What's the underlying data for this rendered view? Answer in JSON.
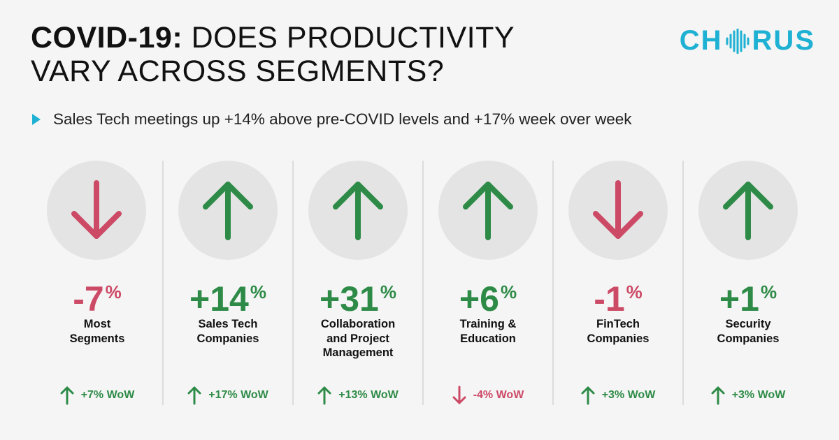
{
  "header": {
    "title_bold": "COVID-19:",
    "title_rest_line1": " DOES PRODUCTIVITY",
    "title_line2": "VARY ACROSS SEGMENTS?",
    "logo_left": "CH",
    "logo_right": "RUS"
  },
  "subtitle": "Sales Tech meetings up +14% above pre-COVID levels and +17% week over week",
  "colors": {
    "up": "#2e8b47",
    "down": "#cc4a66",
    "accent": "#1fb1d3"
  },
  "chart_data": {
    "type": "table",
    "title": "COVID-19: DOES PRODUCTIVITY VARY ACROSS SEGMENTS?",
    "unit": "%",
    "segments": [
      {
        "name": "Most Segments",
        "label_lines": [
          "Most",
          "Segments"
        ],
        "change": -7,
        "display": "-7",
        "direction": "down",
        "wow": 7,
        "wow_display": "+7% WoW",
        "wow_direction": "up"
      },
      {
        "name": "Sales Tech Companies",
        "label_lines": [
          "Sales Tech",
          "Companies"
        ],
        "change": 14,
        "display": "+14",
        "direction": "up",
        "wow": 17,
        "wow_display": "+17% WoW",
        "wow_direction": "up"
      },
      {
        "name": "Collaboration and Project Management",
        "label_lines": [
          "Collaboration",
          "and Project",
          "Management"
        ],
        "change": 31,
        "display": "+31",
        "direction": "up",
        "wow": 13,
        "wow_display": "+13% WoW",
        "wow_direction": "up"
      },
      {
        "name": "Training & Education",
        "label_lines": [
          "Training &",
          "Education"
        ],
        "change": 6,
        "display": "+6",
        "direction": "up",
        "wow": -4,
        "wow_display": "-4% WoW",
        "wow_direction": "down"
      },
      {
        "name": "FinTech Companies",
        "label_lines": [
          "FinTech",
          "Companies"
        ],
        "change": -1,
        "display": "-1",
        "direction": "down",
        "wow": 3,
        "wow_display": "+3% WoW",
        "wow_direction": "up"
      },
      {
        "name": "Security Companies",
        "label_lines": [
          "Security",
          "Companies"
        ],
        "change": 1,
        "display": "+1",
        "direction": "up",
        "wow": 3,
        "wow_display": "+3% WoW",
        "wow_direction": "up"
      }
    ]
  }
}
